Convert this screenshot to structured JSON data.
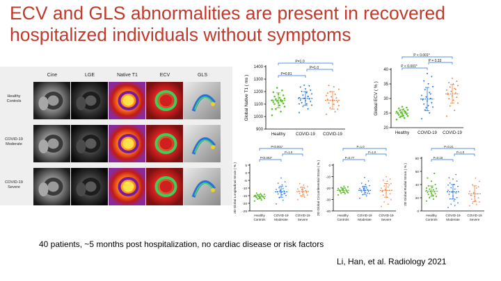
{
  "slide": {
    "title": "ECV and GLS abnormalities are present in recovered hospitalized individuals without symptoms",
    "footnote": "40 patients, ~5 months post hospitalization, no cardiac disease or risk factors",
    "citation": "Li, Han, et al. Radiology 2021"
  },
  "mri_grid": {
    "columns": [
      "Cine",
      "LGE",
      "Native T1",
      "ECV",
      "GLS"
    ],
    "rows": [
      {
        "lines": [
          "Healthy",
          "Controls"
        ]
      },
      {
        "lines": [
          "COVID-19",
          "Moderate"
        ]
      },
      {
        "lines": [
          "COVID-19",
          "Severe"
        ]
      }
    ]
  },
  "colors": {
    "healthy": "#5fbf2c",
    "moderate": "#1e6fd8",
    "severe": "#f07d3a",
    "bracket": "#1e6fd8",
    "title": "#c0392b"
  },
  "chart_data": [
    {
      "id": "native-t1",
      "type": "scatter",
      "ylabel": "Global  Native  T1  ( ms )",
      "ylim": [
        900,
        1400
      ],
      "yticks": [
        900,
        1000,
        1100,
        1200,
        1300,
        1400
      ],
      "categories": [
        [
          "Healthy"
        ],
        [
          "COVID-19"
        ],
        [
          "COVID-19"
        ]
      ],
      "series": [
        {
          "name": "Healthy",
          "color": "#5fbf2c",
          "mean": 1130,
          "sd": 60,
          "values": [
            1010,
            1040,
            1060,
            1080,
            1090,
            1100,
            1105,
            1110,
            1115,
            1120,
            1125,
            1130,
            1135,
            1140,
            1145,
            1150,
            1160,
            1170,
            1180,
            1195,
            1210,
            1230,
            1060,
            1125
          ]
        },
        {
          "name": "COVID-19 Moderate",
          "color": "#1e6fd8",
          "mean": 1145,
          "sd": 55,
          "values": [
            1030,
            1060,
            1080,
            1090,
            1100,
            1110,
            1120,
            1125,
            1130,
            1140,
            1145,
            1150,
            1160,
            1170,
            1180,
            1190,
            1200,
            1210,
            1220,
            1235,
            1245,
            1250,
            1100,
            1160
          ]
        },
        {
          "name": "COVID-19 Severe",
          "color": "#f07d3a",
          "mean": 1130,
          "sd": 70,
          "values": [
            1020,
            1040,
            1070,
            1090,
            1100,
            1110,
            1120,
            1130,
            1140,
            1150,
            1160,
            1170,
            1180,
            1200,
            1220,
            1240,
            1250,
            1060,
            1135,
            1190
          ]
        }
      ],
      "comparisons": [
        {
          "from": 0,
          "to": 1,
          "label": "P=0.81",
          "level": 0
        },
        {
          "from": 1,
          "to": 2,
          "label": "P=1.0",
          "level": 1
        },
        {
          "from": 0,
          "to": 2,
          "label": "P=1.0",
          "level": 2
        }
      ]
    },
    {
      "id": "ecv",
      "type": "scatter",
      "ylabel": "Global  ECV ( % )",
      "ylim": [
        20,
        40
      ],
      "yticks": [
        20,
        25,
        30,
        35,
        40
      ],
      "categories": [
        [
          "Healthy"
        ],
        [
          "COVID-19"
        ],
        [
          "COVID-19"
        ]
      ],
      "series": [
        {
          "name": "Healthy",
          "color": "#5fbf2c",
          "mean": 25,
          "sd": 1.2,
          "values": [
            22.8,
            23.3,
            23.6,
            24.0,
            24.2,
            24.4,
            24.6,
            24.8,
            25.0,
            25.1,
            25.3,
            25.5,
            25.7,
            25.9,
            26.1,
            26.3,
            26.6,
            26.9,
            27.2,
            24.9,
            25.4,
            23.9
          ]
        },
        {
          "name": "COVID-19 Moderate",
          "color": "#1e6fd8",
          "mean": 29.8,
          "sd": 4,
          "values": [
            23.0,
            25.0,
            26.0,
            27.0,
            27.5,
            28.0,
            28.5,
            29.0,
            29.5,
            30.0,
            30.5,
            31.0,
            32.0,
            33.0,
            34.0,
            35.0,
            36.0,
            37.5,
            38.5,
            29.7,
            31.5,
            26.8
          ]
        },
        {
          "name": "COVID-19 Severe",
          "color": "#f07d3a",
          "mean": 31.6,
          "sd": 3.2,
          "values": [
            24.0,
            26.0,
            27.5,
            28.5,
            29.5,
            30.0,
            30.5,
            31.0,
            31.5,
            32.0,
            32.5,
            33.0,
            33.5,
            34.0,
            34.5,
            35.0,
            35.5,
            36.0,
            37.0,
            31.8,
            33.2
          ]
        }
      ],
      "comparisons": [
        {
          "from": 0,
          "to": 1,
          "label": "P < 0.001*",
          "level": 0
        },
        {
          "from": 1,
          "to": 2,
          "label": "P = 0.33",
          "level": 1
        },
        {
          "from": 0,
          "to": 2,
          "label": "P < 0.001*",
          "level": 2
        }
      ]
    },
    {
      "id": "gls",
      "type": "scatter",
      "ylabel": "2D  Global  Longitudinal  Strain  ( % )",
      "ylim": [
        -25,
        5
      ],
      "yticks": [
        5,
        0,
        -5,
        -10,
        -15,
        -20,
        -25
      ],
      "categories": [
        [
          "Healthy",
          "Controls"
        ],
        [
          "COVID-19",
          "Moderate"
        ],
        [
          "COVID-19",
          "Severe"
        ]
      ],
      "series": [
        {
          "name": "Healthy Controls",
          "color": "#5fbf2c",
          "mean": -15.6,
          "sd": 1.4,
          "values": [
            -18.5,
            -17.8,
            -17.2,
            -16.8,
            -16.5,
            -16.2,
            -16.0,
            -15.8,
            -15.6,
            -15.4,
            -15.2,
            -15.0,
            -14.8,
            -14.5,
            -14.2,
            -13.8,
            -13.4,
            -15.7,
            -16.4,
            -14.9
          ]
        },
        {
          "name": "COVID-19 Moderate",
          "color": "#1e6fd8",
          "mean": -12.5,
          "sd": 3.5,
          "values": [
            -20.5,
            -18.0,
            -16.5,
            -15.0,
            -14.5,
            -14.0,
            -13.5,
            -13.0,
            -12.5,
            -12.0,
            -11.5,
            -11.0,
            -10.5,
            -10.0,
            -9.0,
            -8.0,
            -7.0,
            -6.0,
            -3.5,
            -12.6,
            -13.8,
            -11.8
          ]
        },
        {
          "name": "COVID-19 Severe",
          "color": "#f07d3a",
          "mean": -12.3,
          "sd": 2.8,
          "values": [
            -17.5,
            -16.0,
            -15.0,
            -14.5,
            -14.0,
            -13.5,
            -13.0,
            -12.5,
            -12.0,
            -11.5,
            -11.0,
            -10.5,
            -10.0,
            -9.5,
            -9.0,
            -8.0,
            -7.0,
            -12.2,
            -10.8
          ]
        }
      ],
      "comparisons": [
        {
          "from": 0,
          "to": 1,
          "label": "P<0.002*",
          "level": 0
        },
        {
          "from": 1,
          "to": 2,
          "label": "P=1.0",
          "level": 1
        },
        {
          "from": 0,
          "to": 2,
          "label": "P<0.001*",
          "level": 2
        }
      ]
    },
    {
      "id": "gcs",
      "type": "scatter",
      "ylabel": "2D  Global  Circumferential  Strain  ( % )",
      "ylim": [
        -40,
        0
      ],
      "yticks": [
        0,
        -10,
        -20,
        -30,
        -40
      ],
      "categories": [
        [
          "Healthy",
          "Controls"
        ],
        [
          "COVID-19",
          "Moderate"
        ],
        [
          "COVID-19",
          "Severe"
        ]
      ],
      "series": [
        {
          "name": "Healthy Controls",
          "color": "#5fbf2c",
          "mean": -22,
          "sd": 2,
          "values": [
            -26,
            -25,
            -24.5,
            -24,
            -23.5,
            -23,
            -22.5,
            -22,
            -21.8,
            -21.5,
            -21,
            -20.5,
            -20,
            -19.5,
            -19,
            -18.5,
            -22.2,
            -23.2,
            -20.8
          ]
        },
        {
          "name": "COVID-19 Moderate",
          "color": "#1e6fd8",
          "mean": -22,
          "sd": 3.5,
          "values": [
            -29,
            -27,
            -26,
            -25,
            -24,
            -23.5,
            -23,
            -22.5,
            -22,
            -21.5,
            -21,
            -20.5,
            -20,
            -19,
            -18,
            -17,
            -16,
            -14,
            -11,
            -22.3,
            -24.6,
            -20.2
          ]
        },
        {
          "name": "COVID-19 Severe",
          "color": "#f07d3a",
          "mean": -22,
          "sd": 6,
          "values": [
            -36,
            -34,
            -32,
            -30,
            -28,
            -26,
            -25,
            -24,
            -23,
            -22,
            -21,
            -20,
            -19,
            -18,
            -16,
            -14,
            -13,
            -12,
            -10,
            -22.5,
            -17.2
          ]
        }
      ],
      "comparisons": [
        {
          "from": 0,
          "to": 1,
          "label": "P=0.77",
          "level": 0
        },
        {
          "from": 1,
          "to": 2,
          "label": "P=1.0",
          "level": 1
        },
        {
          "from": 0,
          "to": 2,
          "label": "P=1.0",
          "level": 2
        }
      ]
    },
    {
      "id": "grs",
      "type": "scatter",
      "ylabel": "2D  Global  Radial  Strain  ( % )",
      "ylim": [
        0,
        80
      ],
      "yticks": [
        0,
        20,
        40,
        60,
        80
      ],
      "categories": [
        [
          "Healthy",
          "Controls"
        ],
        [
          "COVID-19",
          "Moderate"
        ],
        [
          "COVID-19",
          "Severe"
        ]
      ],
      "series": [
        {
          "name": "Healthy Controls",
          "color": "#5fbf2c",
          "mean": 30,
          "sd": 8,
          "values": [
            15,
            18,
            20,
            22,
            24,
            25,
            26,
            27,
            28,
            29,
            30,
            31,
            32,
            33,
            34,
            36,
            38,
            40,
            45,
            50,
            57,
            29.5,
            34.6,
            23.4
          ]
        },
        {
          "name": "COVID-19 Moderate",
          "color": "#1e6fd8",
          "mean": 29,
          "sd": 11,
          "values": [
            5,
            8,
            10,
            12,
            15,
            18,
            20,
            22,
            25,
            27,
            29,
            31,
            33,
            35,
            37,
            40,
            42,
            45,
            48,
            50,
            55,
            28.3,
            39.1,
            17.2
          ]
        },
        {
          "name": "COVID-19 Severe",
          "color": "#f07d3a",
          "mean": 26,
          "sd": 12,
          "values": [
            8,
            10,
            12,
            14,
            16,
            18,
            20,
            22,
            24,
            26,
            28,
            30,
            35,
            40,
            45,
            50,
            23.6,
            36.7
          ]
        }
      ],
      "comparisons": [
        {
          "from": 0,
          "to": 1,
          "label": "P=0.18",
          "level": 0
        },
        {
          "from": 1,
          "to": 2,
          "label": "P=1.0",
          "level": 1
        },
        {
          "from": 0,
          "to": 2,
          "label": "P=0.21",
          "level": 2
        }
      ]
    }
  ]
}
